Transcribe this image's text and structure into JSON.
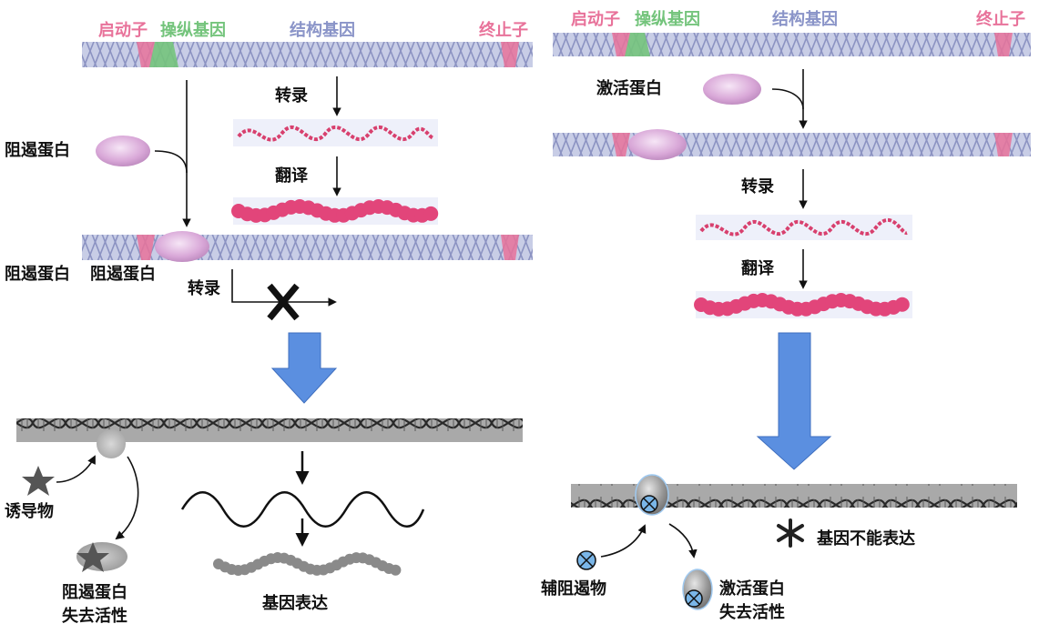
{
  "left": {
    "top_labels": {
      "promoter": "启动子",
      "operator": "操纵基因",
      "structural": "结构基因",
      "terminator": "终止子"
    },
    "repressor": "阻遏蛋白",
    "transcription": "转录",
    "translation": "翻译",
    "bottom_left_labels": [
      "阻遏蛋白",
      "阻遏蛋白"
    ],
    "blocked_transcription": "转录",
    "inducer": "诱导物",
    "repressor_inactive_line1": "阻遏蛋白",
    "repressor_inactive_line2": "失去活性",
    "gene_expression": "基因表达"
  },
  "right": {
    "top_labels": {
      "promoter": "启动子",
      "operator": "操纵基因",
      "structural": "结构基因",
      "terminator": "终止子"
    },
    "activator": "激活蛋白",
    "transcription": "转录",
    "translation": "翻译",
    "corepressor": "辅阻遏物",
    "activator_inactive_line1": "激活蛋白",
    "activator_inactive_line2": "失去活性",
    "no_expression": "基因不能表达"
  },
  "colors": {
    "dna_band": "#c8cde6",
    "dna_strand": "#8c93c2",
    "promoter": "#e8729a",
    "operator": "#74c47c",
    "protein_pink": "#d86aa0",
    "ellipse": "#d4a2d6",
    "arrow_blue": "#5b8fe0"
  }
}
